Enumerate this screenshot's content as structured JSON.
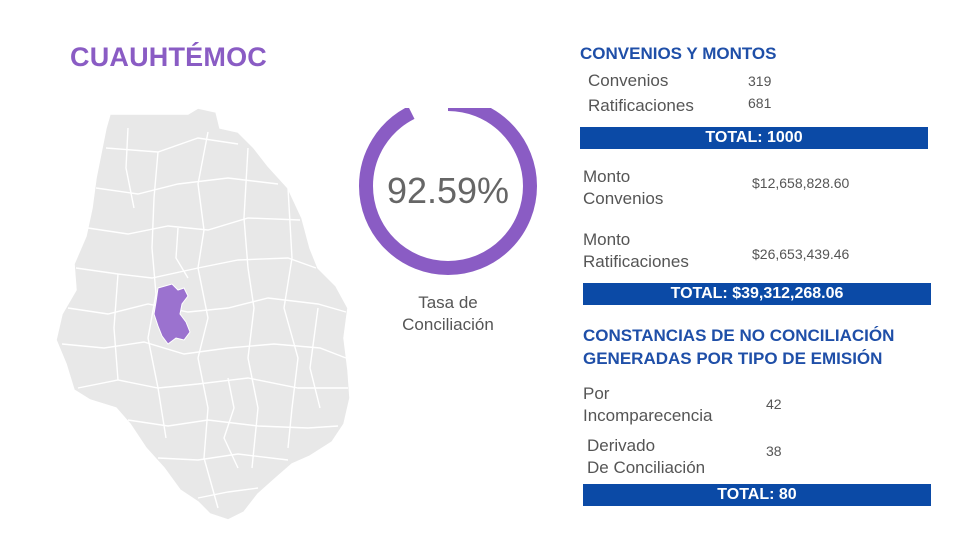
{
  "title": "CUAUHTÉMOC",
  "rate": {
    "value": "92.59%",
    "fraction": 0.9259,
    "label_line1": "Tasa de",
    "label_line2": "Conciliación"
  },
  "colors": {
    "purple": "#8a5cc4",
    "blue_heading": "#1f4fa8",
    "bar": "#0b4aa6",
    "map_gray": "#e8e8e8"
  },
  "convenios": {
    "heading": "CONVENIOS Y MONTOS",
    "rows": [
      {
        "label": "Convenios",
        "value": "319"
      },
      {
        "label": "Ratificaciones",
        "value": "681"
      }
    ],
    "total": "TOTAL: 1000",
    "montos": [
      {
        "label_line1": "Monto",
        "label_line2": "Convenios",
        "value": "$12,658,828.60"
      },
      {
        "label_line1": "Monto",
        "label_line2": "Ratificaciones",
        "value": "$26,653,439.46"
      }
    ],
    "total_montos": "TOTAL: $39,312,268.06"
  },
  "constancias": {
    "heading_line1": "CONSTANCIAS DE NO CONCILIACIÓN",
    "heading_line2": "GENERADAS POR TIPO DE EMISIÓN",
    "rows": [
      {
        "label_line1": "Por",
        "label_line2": "Incomparecencia",
        "value": "42"
      },
      {
        "label_line1": "Derivado",
        "label_line2": "De Conciliación",
        "value": "38"
      }
    ],
    "total": "TOTAL: 80"
  }
}
